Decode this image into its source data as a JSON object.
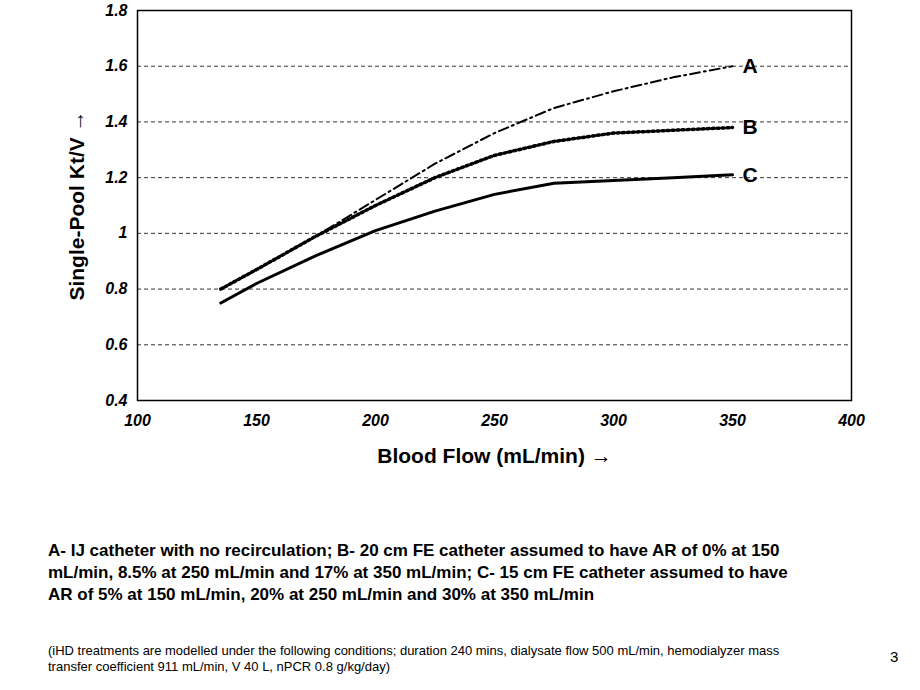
{
  "chart_data": {
    "type": "line",
    "x_label": "Blood Flow (mL/min)",
    "y_label": "Single-Pool Kt/V",
    "x": [
      135,
      150,
      175,
      200,
      225,
      250,
      275,
      300,
      325,
      350
    ],
    "series": [
      {
        "name": "A",
        "color": "#000000",
        "line_style": "dashdot",
        "values": [
          0.8,
          0.87,
          0.99,
          1.12,
          1.25,
          1.36,
          1.45,
          1.51,
          1.56,
          1.6
        ]
      },
      {
        "name": "B",
        "color": "#000000",
        "line_style": "dotted",
        "values": [
          0.8,
          0.87,
          0.99,
          1.1,
          1.2,
          1.28,
          1.33,
          1.36,
          1.37,
          1.38
        ]
      },
      {
        "name": "C",
        "color": "#000000",
        "line_style": "solid",
        "values": [
          0.75,
          0.82,
          0.92,
          1.01,
          1.08,
          1.14,
          1.18,
          1.19,
          1.2,
          1.21
        ]
      }
    ],
    "xlim": [
      100,
      400
    ],
    "xticks": [
      100,
      150,
      200,
      250,
      300,
      350,
      400
    ],
    "ylim": [
      0.4,
      1.8
    ],
    "yticks": [
      0.4,
      0.6,
      0.8,
      1,
      1.2,
      1.4,
      1.6,
      1.8
    ],
    "grid": "y",
    "caption": "A- IJ catheter with no recirculation; B- 20 cm FE catheter assumed to have AR of 0% at 150 mL/min, 8.5% at 250 mL/min and 17% at 350 mL/min; C- 15 cm FE catheter assumed to have AR of 5% at 150 mL/min, 20% at 250 mL/min and 30% at 350 mL/min",
    "note": "(iHD treatments are modelled under the following conditions; duration 240 mins, dialysate flow 500 mL/min, hemodialyzer mass transfer coefficient 911 mL/min, V 40 L, nPCR 0.8 g/kg/day)",
    "page_number": "3"
  }
}
